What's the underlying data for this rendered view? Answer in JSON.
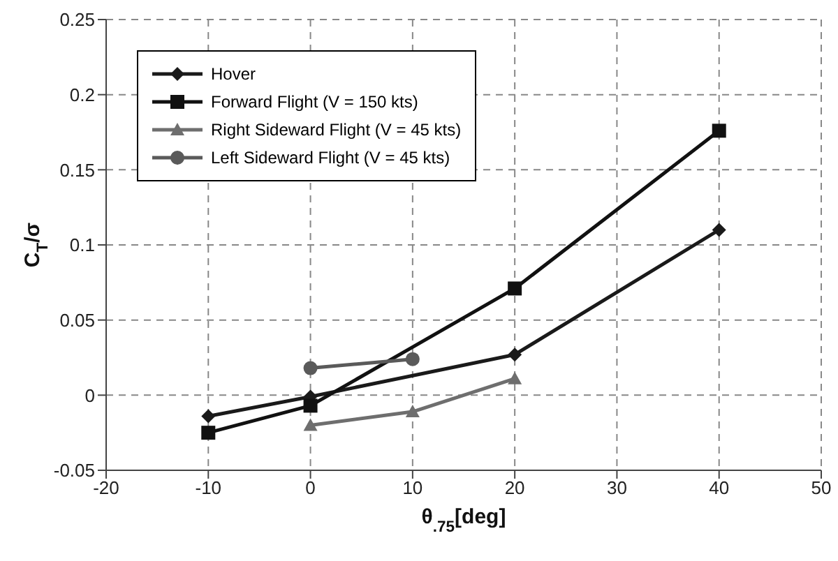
{
  "chart_data": {
    "type": "line",
    "xlabel": "θ$_{.75}$[deg]",
    "ylabel": "C$_{T}$/σ",
    "xlim": [
      -20,
      50
    ],
    "xticks": [
      -20,
      -10,
      0,
      10,
      20,
      30,
      40,
      50
    ],
    "ylim": [
      -0.05,
      0.25
    ],
    "yticks": [
      -0.05,
      0,
      0.05,
      0.1,
      0.15,
      0.2,
      0.25
    ],
    "grid": true,
    "legend": "top left",
    "line_style": "solid",
    "series": [
      {
        "name": "Hover",
        "color": "#1a1a1a",
        "marker": "diamond",
        "x": [
          -10,
          0,
          20,
          40
        ],
        "values": [
          -0.014,
          -0.001,
          0.027,
          0.11
        ]
      },
      {
        "name": "Forward Flight (V = 150 kts)",
        "color": "#111111",
        "marker": "square",
        "x": [
          -10,
          0,
          20,
          40
        ],
        "values": [
          -0.025,
          -0.007,
          0.071,
          0.176
        ]
      },
      {
        "name": "Right Sideward Flight (V = 45 kts)",
        "color": "#6e6e6e",
        "marker": "triangle",
        "x": [
          0,
          10,
          20
        ],
        "values": [
          -0.02,
          -0.011,
          0.011
        ]
      },
      {
        "name": "Left Sideward Flight (V = 45 kts)",
        "color": "#5a5a5a",
        "marker": "circle",
        "x": [
          0,
          10
        ],
        "values": [
          0.018,
          0.024
        ]
      }
    ]
  }
}
